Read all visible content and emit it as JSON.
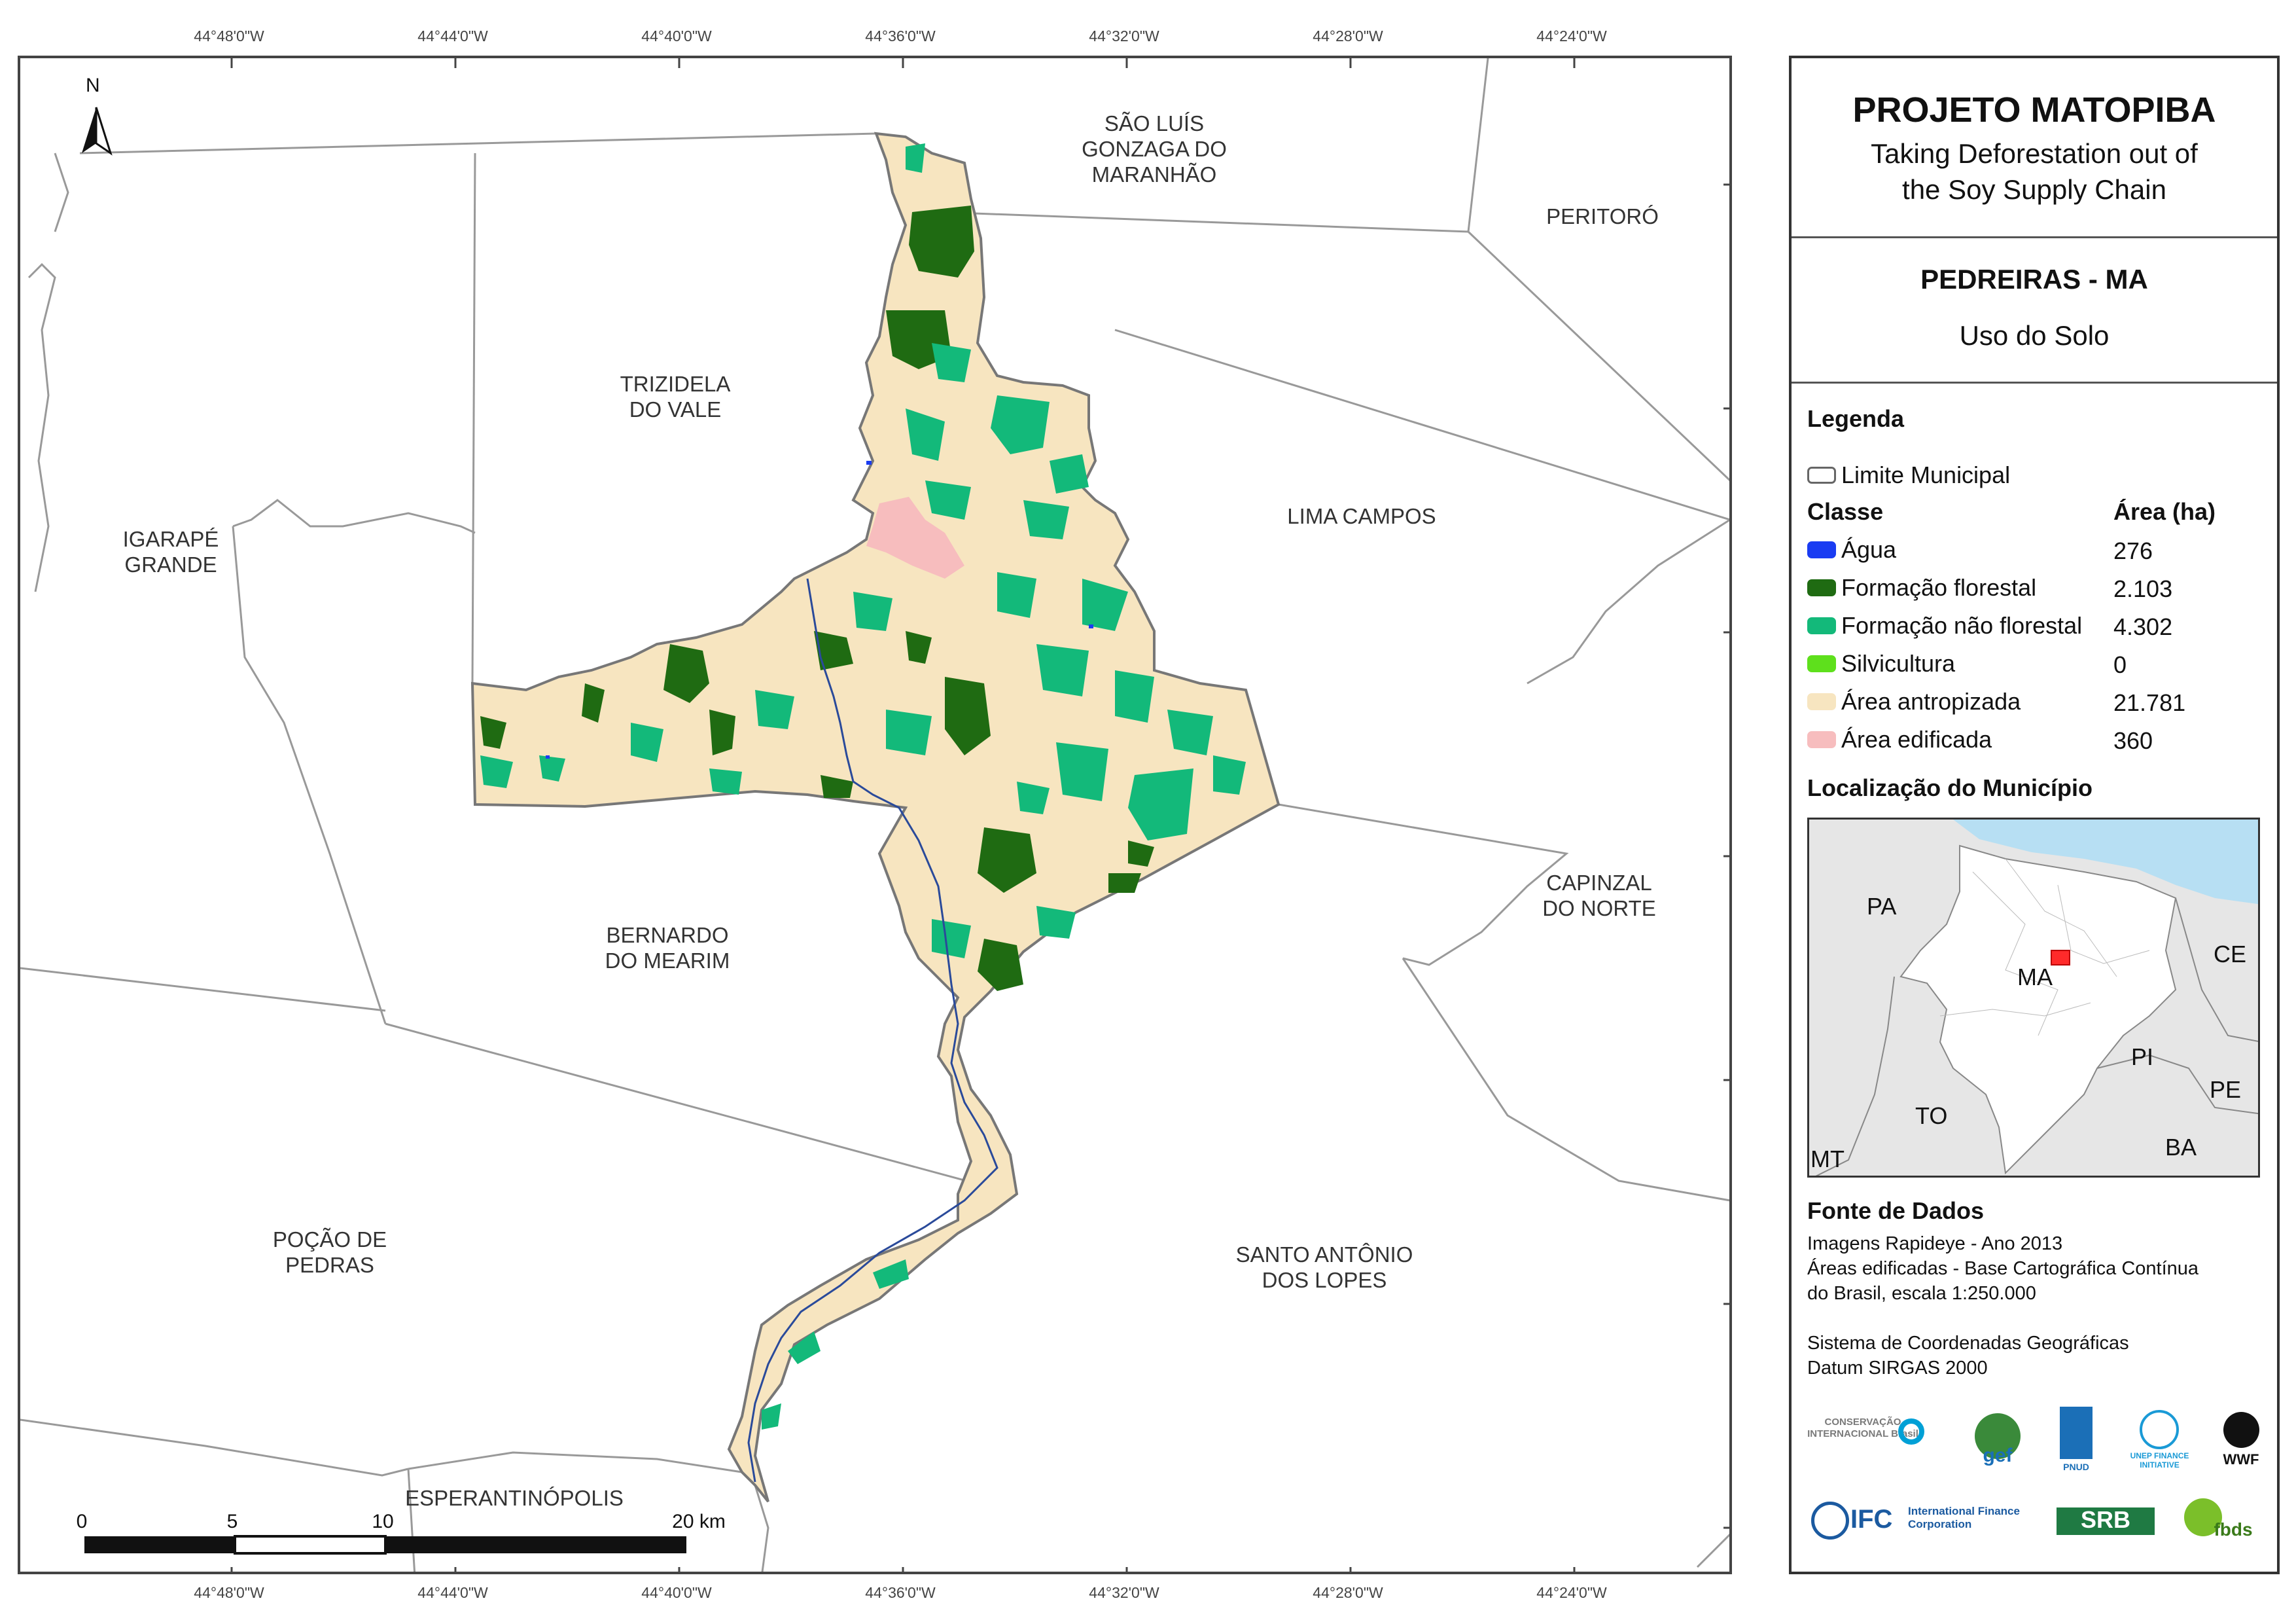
{
  "map": {
    "top_ticks": [
      "44°48'0\"W",
      "44°44'0\"W",
      "44°40'0\"W",
      "44°36'0\"W",
      "44°32'0\"W",
      "44°28'0\"W",
      "44°24'0\"W"
    ],
    "bottom_ticks": [
      "44°48'0\"W",
      "44°44'0\"W",
      "44°40'0\"W",
      "44°36'0\"W",
      "44°32'0\"W",
      "44°28'0\"W",
      "44°24'0\"W"
    ],
    "north_label": "N",
    "municipalities": {
      "sao_luis": "SÃO LUÍS\nGONZAGA DO\nMARANHÃO",
      "peritoro": "PERITORÓ",
      "trizidela": "TRIZIDELA\nDO VALE",
      "lima_campos": "LIMA CAMPOS",
      "igarape": "IGARAPÉ\nGRANDE",
      "bernardo": "BERNARDO\nDO MEARIM",
      "capinzal": "CAPINZAL\nDO NORTE",
      "pocao": "POÇÃO DE\nPEDRAS",
      "santo_antonio": "SANTO ANTÔNIO\nDOS LOPES",
      "esperantinopolis": "ESPERANTINÓPOLIS"
    },
    "scale": {
      "labels": [
        "0",
        "5",
        "10",
        "20 km"
      ]
    }
  },
  "panel": {
    "title": "PROJETO MATOPIBA",
    "subtitle_line1": "Taking Deforestation out of",
    "subtitle_line2": "the Soy Supply Chain",
    "municipality": "PEDREIRAS - MA",
    "theme": "Uso do Solo",
    "legend_heading": "Legenda",
    "limit_label": "Limite Municipal",
    "class_header": "Classe",
    "area_header": "Área (ha)",
    "classes": [
      {
        "label": "Água",
        "area": "276",
        "color": "#1a3cf2"
      },
      {
        "label": "Formação florestal",
        "area": "2.103",
        "color": "#1f6b12"
      },
      {
        "label": "Formação não florestal",
        "area": "4.302",
        "color": "#13b97a"
      },
      {
        "label": "Silvicultura",
        "area": "0",
        "color": "#5ee01c"
      },
      {
        "label": "Área antropizada",
        "area": "21.781",
        "color": "#f7e5c0"
      },
      {
        "label": "Área edificada",
        "area": "360",
        "color": "#f7bdbe"
      }
    ],
    "location_heading": "Localização do Município",
    "inset_labels": {
      "pa": "PA",
      "ma": "MA",
      "ce": "CE",
      "pi": "PI",
      "pe": "PE",
      "to": "TO",
      "ba": "BA",
      "mt": "MT"
    },
    "source_heading": "Fonte de Dados",
    "source_lines": [
      "Imagens Rapideye - Ano 2013",
      "Áreas edificadas - Base Cartográfica Contínua",
      "do Brasil, escala 1:250.000",
      "",
      "Sistema de Coordenadas Geográficas",
      "Datum SIRGAS 2000"
    ],
    "logos": {
      "ci": "CONSERVAÇÃO INTERNACIONAL Brasil",
      "gef": "gef",
      "pnud": "PNUD",
      "unep": "UNEP FINANCE INITIATIVE",
      "wwf": "WWF",
      "ifc": "IFC",
      "ifc_full": "International Finance Corporation",
      "srb": "SRB",
      "fbds": "fbds"
    }
  }
}
